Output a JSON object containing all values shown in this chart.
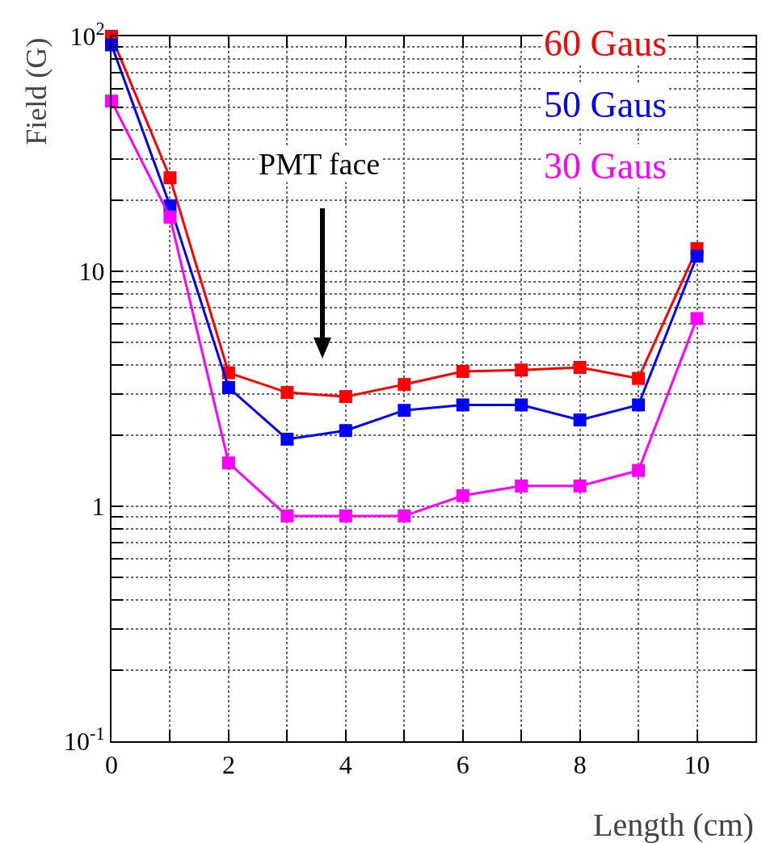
{
  "chart_data": {
    "type": "line",
    "xlabel": "Length (cm)",
    "ylabel": "Field (G)",
    "x": [
      0,
      1,
      2,
      3,
      4,
      5,
      6,
      7,
      8,
      9,
      10
    ],
    "series": [
      {
        "name": "60 Gaus",
        "color": "#ff0000",
        "values": [
          100,
          25,
          3.7,
          3.05,
          2.93,
          3.3,
          3.75,
          3.8,
          3.9,
          3.5,
          12.5
        ]
      },
      {
        "name": "50 Gaus",
        "color": "#0000ff",
        "values": [
          92,
          19,
          3.2,
          1.93,
          2.1,
          2.56,
          2.7,
          2.7,
          2.33,
          2.7,
          11.6
        ]
      },
      {
        "name": "30 Gaus",
        "color": "#ff00ff",
        "values": [
          53,
          17,
          1.53,
          0.91,
          0.91,
          0.91,
          1.11,
          1.22,
          1.22,
          1.42,
          6.3
        ]
      }
    ],
    "annotations": [
      "PMT face"
    ],
    "log": "y",
    "grid": true,
    "legend": "top right",
    "marker": "square",
    "line_style": "solid",
    "xlim": [
      0,
      11
    ],
    "xticks": [
      0,
      {
        "value": 1,
        "label": null
      },
      2,
      {
        "value": 3,
        "label": null
      },
      4,
      {
        "value": 5,
        "label": null
      },
      6,
      {
        "value": 7,
        "label": null
      },
      8,
      {
        "value": 9,
        "label": null
      },
      10,
      {
        "value": 11,
        "label": null
      }
    ],
    "ylim": [
      0.1,
      100
    ],
    "yticks": [
      {
        "value": 0.1,
        "label": "10$^{-1}$"
      },
      {
        "value": 0.2,
        "label": null
      },
      {
        "value": 0.3,
        "label": null
      },
      {
        "value": 0.4,
        "label": null
      },
      {
        "value": 0.5,
        "label": null
      },
      {
        "value": 0.6,
        "label": null
      },
      {
        "value": 0.7,
        "label": null
      },
      {
        "value": 0.8,
        "label": null
      },
      {
        "value": 0.9,
        "label": null
      },
      1,
      {
        "value": 2,
        "label": null
      },
      {
        "value": 3,
        "label": null
      },
      {
        "value": 4,
        "label": null
      },
      {
        "value": 5,
        "label": null
      },
      {
        "value": 6,
        "label": null
      },
      {
        "value": 7,
        "label": null
      },
      {
        "value": 8,
        "label": null
      },
      {
        "value": 9,
        "label": null
      },
      10,
      {
        "value": 20,
        "label": null
      },
      {
        "value": 30,
        "label": null
      },
      {
        "value": 40,
        "label": null
      },
      {
        "value": 50,
        "label": null
      },
      {
        "value": 60,
        "label": null
      },
      {
        "value": 70,
        "label": null
      },
      {
        "value": 80,
        "label": null
      },
      {
        "value": 90,
        "label": null
      },
      {
        "value": 100,
        "label": "10$^{2}$"
      }
    ]
  }
}
